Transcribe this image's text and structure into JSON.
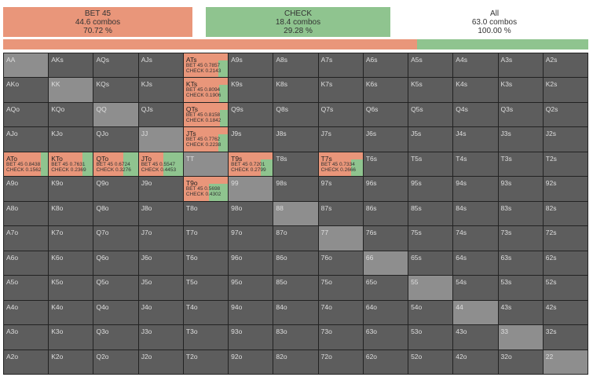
{
  "summary": {
    "bet": {
      "name": "BET 45",
      "combos": "44.6 combos",
      "pct": "70.72 %",
      "fraction": 0.7072,
      "color": "#e9967a"
    },
    "check": {
      "name": "CHECK",
      "combos": "18.4 combos",
      "pct": "29.28 %",
      "fraction": 0.2928,
      "color": "#8fc48f"
    },
    "all": {
      "name": "All",
      "combos": "63.0 combos",
      "pct": "100.00 %"
    }
  },
  "ranks": [
    "A",
    "K",
    "Q",
    "J",
    "T",
    "9",
    "8",
    "7",
    "6",
    "5",
    "4",
    "3",
    "2"
  ],
  "mixed_cells": {
    "ATs": {
      "bet": "BET 45  0.7857",
      "check": "CHECK  0.2143",
      "bet_freq": 0.7857
    },
    "KTs": {
      "bet": "BET 45  0.8094",
      "check": "CHECK  0.1906",
      "bet_freq": 0.8094
    },
    "QTs": {
      "bet": "BET 45  0.8158",
      "check": "CHECK  0.1842",
      "bet_freq": 0.8158
    },
    "JTs": {
      "bet": "BET 45  0.7762",
      "check": "CHECK  0.2238",
      "bet_freq": 0.7762
    },
    "ATo": {
      "bet": "BET 45  0.8438",
      "check": "CHECK  0.1562",
      "bet_freq": 0.8438
    },
    "KTo": {
      "bet": "BET 45  0.7631",
      "check": "CHECK  0.2369",
      "bet_freq": 0.7631
    },
    "QTo": {
      "bet": "BET 45  0.6724",
      "check": "CHECK  0.3276",
      "bet_freq": 0.6724
    },
    "JTo": {
      "bet": "BET 45  0.5547",
      "check": "CHECK  0.4453",
      "bet_freq": 0.5547
    },
    "T9s": {
      "bet": "BET 45  0.7201",
      "check": "CHECK  0.2799",
      "bet_freq": 0.7201
    },
    "T7s": {
      "bet": "BET 45  0.7334",
      "check": "CHECK  0.2666",
      "bet_freq": 0.7334
    },
    "T9o": {
      "bet": "BET 45  0.5698",
      "check": "CHECK  0.4302",
      "bet_freq": 0.5698
    }
  }
}
